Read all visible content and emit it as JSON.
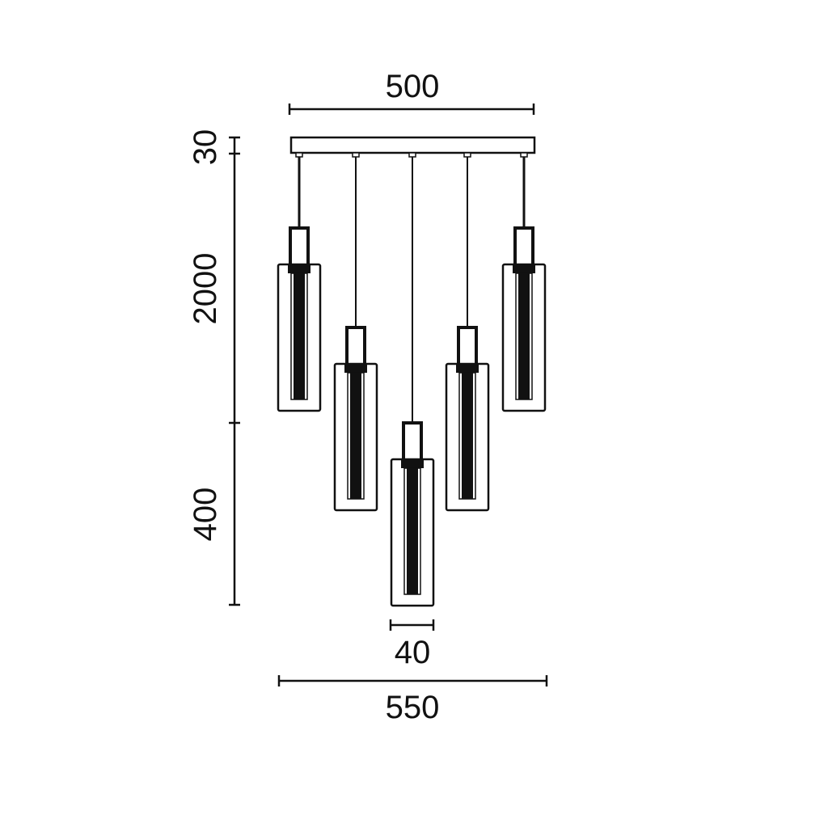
{
  "dimensions": {
    "canopy_width": "500",
    "canopy_height": "30",
    "max_drop": "2000",
    "stagger": "400",
    "shade_width": "40",
    "overall_width": "550"
  },
  "pendant_count": 5,
  "line_color": "#111111"
}
